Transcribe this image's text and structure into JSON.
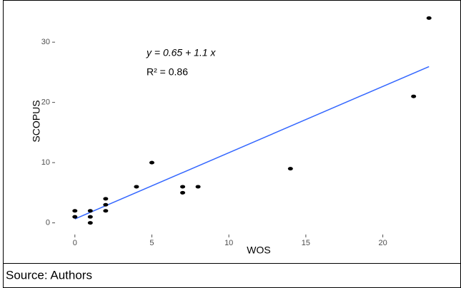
{
  "chart_data": {
    "type": "scatter",
    "x_label": "WOS",
    "y_label": "SCOPUS",
    "x": [
      0,
      0,
      1,
      1,
      1,
      2,
      2,
      2,
      4,
      5,
      7,
      7,
      8,
      14,
      22,
      23
    ],
    "values": [
      2,
      1,
      2,
      1,
      0,
      4,
      3,
      2,
      6,
      10,
      6,
      5,
      6,
      9,
      21,
      34
    ],
    "color": "#000000",
    "xlim": [
      -1.15,
      24.15
    ],
    "ylim": [
      -1.7,
      35.7
    ],
    "xticks": [
      0,
      5,
      10,
      15,
      20
    ],
    "yticks": [
      0,
      10,
      20,
      30
    ],
    "fit": {
      "intercept": 0.65,
      "slope": 1.1,
      "color": "#3366ff"
    },
    "annotations": [
      "y = 0.65 + 1.1 x",
      "R² = 0.86"
    ]
  },
  "source": "Source: Authors"
}
